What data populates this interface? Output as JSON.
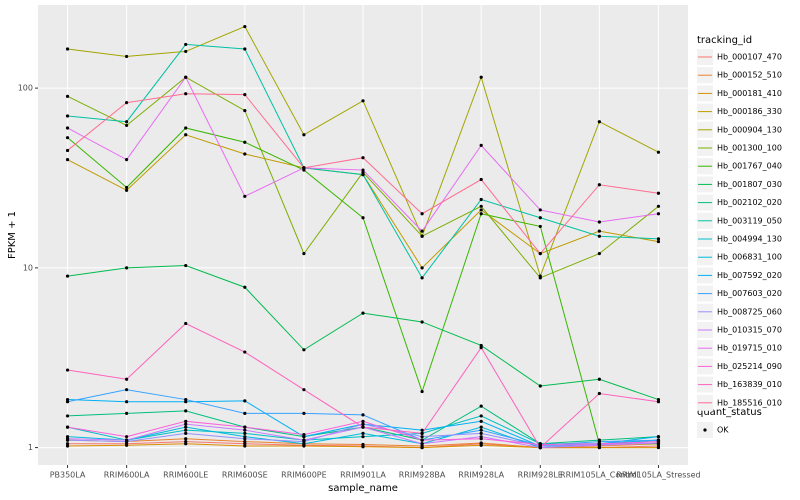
{
  "chart_data": {
    "type": "line",
    "x_label": "sample_name",
    "y_label": "FPKM + 1",
    "categories": [
      "PB350LA",
      "RRIM600LA",
      "RRIM600LE",
      "RRIM600SE",
      "RRIM600PE",
      "RRIM901LA",
      "RRIM928BA",
      "RRIM928LA",
      "RRIM928LE",
      "RRIM105LA_Control",
      "RRIM105LA_Stressed"
    ],
    "ylim": [
      0.8,
      290
    ],
    "yticks": [
      1,
      10,
      100
    ],
    "log_scale": true,
    "grid": true,
    "legend_position": "right",
    "legend_title": "tracking_id",
    "series": [
      {
        "name": "Hb_000107_470",
        "color": "#F8766D",
        "values": [
          1.05,
          1.05,
          1.08,
          1.05,
          1.03,
          1.02,
          1.0,
          1.05,
          1.0,
          1.0,
          1.02
        ]
      },
      {
        "name": "Hb_000152_510",
        "color": "#EA8331",
        "values": [
          1.1,
          1.08,
          1.12,
          1.08,
          1.05,
          1.04,
          1.02,
          1.06,
          1.0,
          1.02,
          1.05
        ]
      },
      {
        "name": "Hb_000181_410",
        "color": "#D89000",
        "values": [
          1.02,
          1.03,
          1.05,
          1.02,
          1.02,
          1.01,
          1.0,
          1.03,
          1.0,
          1.0,
          1.0
        ]
      },
      {
        "name": "Hb_000186_330",
        "color": "#C09B00",
        "values": [
          40,
          27,
          55,
          43,
          36,
          33,
          10,
          21,
          12,
          16,
          14
        ]
      },
      {
        "name": "Hb_000904_130",
        "color": "#A3A500",
        "values": [
          165,
          150,
          160,
          220,
          55,
          85,
          15,
          115,
          9,
          65,
          44
        ]
      },
      {
        "name": "Hb_001300_100",
        "color": "#7CAE00",
        "values": [
          90,
          62,
          115,
          75,
          12,
          34,
          15,
          22,
          8.8,
          12,
          22
        ]
      },
      {
        "name": "Hb_001767_040",
        "color": "#39B600",
        "values": [
          53,
          28,
          60,
          50,
          35,
          19,
          2.05,
          20,
          17,
          1.05,
          1.05
        ]
      },
      {
        "name": "Hb_001807_030",
        "color": "#00BB4E",
        "values": [
          9,
          10,
          10.3,
          7.8,
          3.5,
          5.6,
          5,
          3.7,
          2.2,
          2.4,
          1.85
        ]
      },
      {
        "name": "Hb_002102_020",
        "color": "#00BF7D",
        "values": [
          1.5,
          1.55,
          1.6,
          1.3,
          1.15,
          1.3,
          1.1,
          1.7,
          1.05,
          1.1,
          1.15
        ]
      },
      {
        "name": "Hb_003119_050",
        "color": "#00C1A3",
        "values": [
          70,
          65,
          175,
          165,
          36,
          33,
          8.8,
          24,
          19,
          15,
          14.5
        ]
      },
      {
        "name": "Hb_004994_130",
        "color": "#00BFC4",
        "values": [
          1.3,
          1.1,
          1.25,
          1.2,
          1.1,
          1.15,
          1.2,
          1.5,
          1.05,
          1.05,
          1.1
        ]
      },
      {
        "name": "Hb_006831_100",
        "color": "#00BAE0",
        "values": [
          1.15,
          1.1,
          1.3,
          1.15,
          1.05,
          1.2,
          1.05,
          1.3,
          1.0,
          1.05,
          1.1
        ]
      },
      {
        "name": "Hb_007592_020",
        "color": "#00B0F6",
        "values": [
          1.85,
          1.8,
          1.8,
          1.82,
          1.15,
          1.35,
          1.25,
          1.4,
          1.02,
          1.05,
          1.15
        ]
      },
      {
        "name": "Hb_007603_020",
        "color": "#35A2FF",
        "values": [
          1.8,
          2.1,
          1.85,
          1.55,
          1.55,
          1.52,
          1.1,
          1.25,
          1.03,
          1.08,
          1.1
        ]
      },
      {
        "name": "Hb_008725_060",
        "color": "#9590FF",
        "values": [
          1.1,
          1.08,
          1.2,
          1.12,
          1.08,
          1.35,
          1.15,
          1.2,
          1.02,
          1.04,
          1.08
        ]
      },
      {
        "name": "Hb_010315_070",
        "color": "#C77CFF",
        "values": [
          1.12,
          1.1,
          1.35,
          1.25,
          1.1,
          1.3,
          1.05,
          1.15,
          1.0,
          1.03,
          1.06
        ]
      },
      {
        "name": "Hb_019715_010",
        "color": "#E76BF3",
        "values": [
          60,
          40,
          115,
          25,
          36,
          35,
          16,
          48,
          21,
          18,
          20
        ]
      },
      {
        "name": "Hb_025214_090",
        "color": "#FA62DB",
        "values": [
          1.3,
          1.15,
          1.4,
          1.3,
          1.18,
          1.4,
          1.1,
          1.12,
          1.04,
          1.05,
          1.08
        ]
      },
      {
        "name": "Hb_163839_010",
        "color": "#FF62BC",
        "values": [
          2.7,
          2.4,
          4.9,
          3.4,
          2.1,
          1.3,
          1.2,
          3.6,
          1.0,
          2.0,
          1.8
        ]
      },
      {
        "name": "Hb_185516_010",
        "color": "#FF6C91",
        "values": [
          45,
          83,
          93,
          92,
          36,
          41,
          20,
          31,
          12,
          29,
          26
        ]
      }
    ],
    "point_legend_title": "quant_status",
    "point_legend_label": "OK",
    "point_color": "#000000"
  }
}
